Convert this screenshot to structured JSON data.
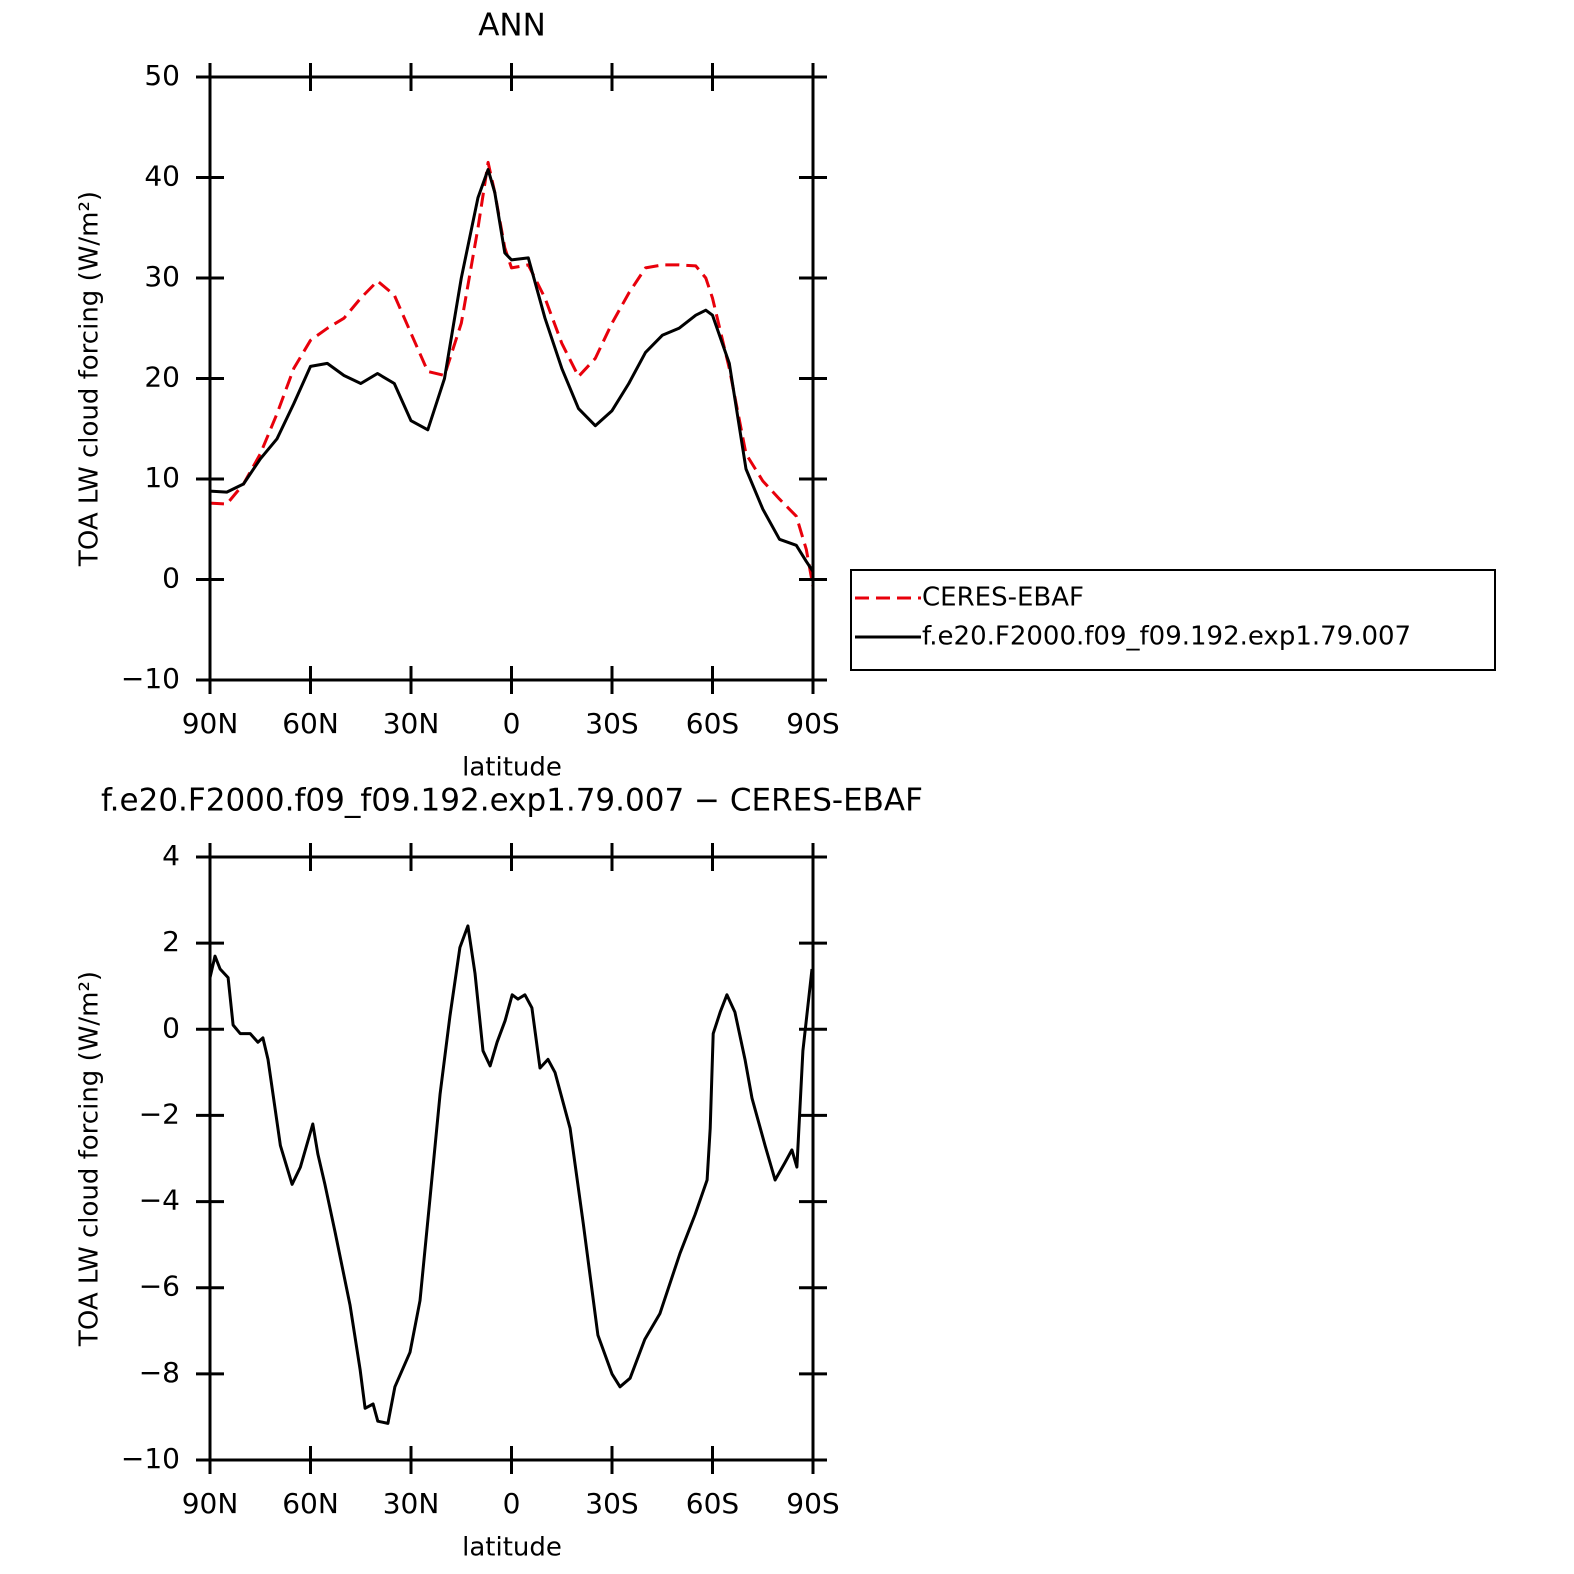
{
  "chart_data": [
    {
      "type": "line",
      "title": "ANN",
      "xlabel": "latitude",
      "ylabel": "TOA LW cloud forcing (W/m²)",
      "x": [
        90,
        85,
        80,
        75,
        70,
        65,
        60,
        55,
        50,
        45,
        40,
        35,
        30,
        25,
        20,
        15,
        10,
        7,
        5,
        2,
        0,
        -5,
        -10,
        -15,
        -20,
        -25,
        -30,
        -35,
        -40,
        -45,
        -50,
        -55,
        -58,
        -60,
        -65,
        -70,
        -75,
        -80,
        -85,
        -88,
        -90
      ],
      "series": [
        {
          "name": "CERES-EBAF",
          "color": "#e8000b",
          "linestyle": "dashed",
          "values": [
            7.6,
            7.5,
            9.5,
            12.5,
            16.5,
            21,
            23.8,
            25,
            26,
            28,
            29.7,
            28.3,
            24.5,
            20.7,
            20.3,
            25.5,
            35,
            41.5,
            38.5,
            33,
            31,
            31.3,
            28,
            23.5,
            20.2,
            22,
            25.5,
            28.5,
            31,
            31.3,
            31.3,
            31.2,
            30,
            28,
            21,
            12.5,
            9.8,
            8,
            6.3,
            3,
            -0.7
          ]
        },
        {
          "name": "f.e20.F2000.f09_f09.192.exp1.79.007",
          "color": "#000000",
          "linestyle": "solid",
          "values": [
            8.8,
            8.7,
            9.5,
            12,
            14,
            17.5,
            21.2,
            21.5,
            20.3,
            19.5,
            20.5,
            19.5,
            15.8,
            14.9,
            20,
            30,
            38,
            40.8,
            38.5,
            32.5,
            31.8,
            32,
            26,
            21,
            17,
            15.3,
            16.8,
            19.5,
            22.6,
            24.3,
            25,
            26.3,
            26.8,
            26.3,
            21.5,
            11,
            7,
            4,
            3.4,
            1.8,
            0.8
          ]
        }
      ],
      "xlim": [
        90,
        -90
      ],
      "xticks": [
        {
          "value": 90,
          "label": "90N"
        },
        {
          "value": 60,
          "label": "60N"
        },
        {
          "value": 30,
          "label": "30N"
        },
        0,
        {
          "value": -30,
          "label": "30S"
        },
        {
          "value": -60,
          "label": "60S"
        },
        {
          "value": -90,
          "label": "90S"
        }
      ],
      "ylim": [
        -10,
        50
      ],
      "yticks": [
        {
          "value": -10,
          "label": "−10"
        },
        0,
        10,
        20,
        30,
        40,
        50
      ],
      "legend": "right"
    },
    {
      "type": "line",
      "title": "f.e20.F2000.f09_f09.192.exp1.79.007 − CERES-EBAF",
      "xlabel": "latitude",
      "ylabel": "TOA LW cloud forcing (W/m²)",
      "x": [
        90,
        88.5,
        87,
        84.6,
        83.1,
        81,
        78,
        75.7,
        74.2,
        72.7,
        69,
        65.5,
        63,
        59.3,
        57.8,
        55.7,
        52.7,
        48.2,
        45.2,
        43.7,
        41.3,
        39.9,
        36.9,
        34.8,
        30.3,
        27.3,
        24.3,
        21.3,
        18.4,
        15.4,
        13,
        10.9,
        8.5,
        6.4,
        4.3,
        1.9,
        -0.2,
        -1.9,
        -4,
        -6.1,
        -8.5,
        -10.9,
        -13,
        -17.5,
        -21.4,
        -25.8,
        -30,
        -32.4,
        -35.4,
        -39.8,
        -44.3,
        -50.3,
        -54.8,
        -58.4,
        -59.3,
        -60.2,
        -62.3,
        -64.3,
        -66.7,
        -69.7,
        -71.8,
        -75.7,
        -78.7,
        -81.6,
        -83.7,
        -85.2,
        -87,
        -89.7
      ],
      "values": [
        1.2,
        1.7,
        1.4,
        1.2,
        0.1,
        -0.1,
        -0.1,
        -0.3,
        -0.2,
        -0.7,
        -2.7,
        -3.6,
        -3.2,
        -2.2,
        -2.9,
        -3.6,
        -4.7,
        -6.4,
        -7.9,
        -8.8,
        -8.7,
        -9.1,
        -9.15,
        -8.3,
        -7.5,
        -6.3,
        -3.9,
        -1.5,
        0.3,
        1.9,
        2.4,
        1.3,
        -0.5,
        -0.85,
        -0.3,
        0.2,
        0.8,
        0.7,
        0.8,
        0.5,
        -0.9,
        -0.7,
        -1.0,
        -2.3,
        -4.5,
        -7.1,
        -8,
        -8.3,
        -8.1,
        -7.2,
        -6.6,
        -5.2,
        -4.3,
        -3.5,
        -2.3,
        -0.1,
        0.4,
        0.8,
        0.4,
        -0.7,
        -1.6,
        -2.7,
        -3.5,
        -3.1,
        -2.8,
        -3.2,
        -0.5,
        1.4
      ],
      "color": "#000000",
      "xlim": [
        90,
        -90
      ],
      "xticks": [
        {
          "value": 90,
          "label": "90N"
        },
        {
          "value": 60,
          "label": "60N"
        },
        {
          "value": 30,
          "label": "30N"
        },
        0,
        {
          "value": -30,
          "label": "30S"
        },
        {
          "value": -60,
          "label": "60S"
        },
        {
          "value": -90,
          "label": "90S"
        }
      ],
      "ylim": [
        -10,
        4
      ],
      "yticks": [
        {
          "value": -10,
          "label": "−10"
        },
        {
          "value": -8,
          "label": "−8"
        },
        {
          "value": -6,
          "label": "−6"
        },
        {
          "value": -4,
          "label": "−4"
        },
        {
          "value": -2,
          "label": "−2"
        },
        0,
        2,
        4
      ]
    }
  ]
}
